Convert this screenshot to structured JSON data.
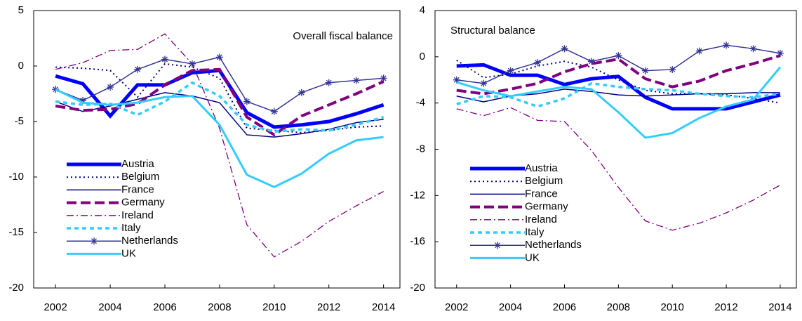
{
  "chart_data": [
    {
      "type": "line",
      "title": "Overall fiscal balance",
      "x": [
        2002,
        2003,
        2004,
        2005,
        2006,
        2007,
        2008,
        2009,
        2010,
        2011,
        2012,
        2013,
        2014
      ],
      "xlim": [
        2001.2,
        2014.6
      ],
      "xticks": [
        2002,
        2004,
        2006,
        2008,
        2010,
        2012,
        2014
      ],
      "ylim": [
        -20,
        5
      ],
      "yticks": [
        5,
        0,
        -5,
        -10,
        -15,
        -20
      ],
      "legend": "lower left",
      "series": [
        {
          "name": "Austria",
          "color": "#0000ff",
          "values": [
            -0.9,
            -1.6,
            -4.5,
            -1.7,
            -1.7,
            -0.6,
            -0.4,
            -4.2,
            -5.5,
            -5.3,
            -5.0,
            -4.3,
            -3.5
          ]
        },
        {
          "name": "Belgium",
          "color": "#000080",
          "values": [
            -0.1,
            -0.2,
            -0.4,
            -2.8,
            0.2,
            -0.1,
            -1.1,
            -5.6,
            -5.8,
            -6.0,
            -5.8,
            -5.5,
            -5.4
          ]
        },
        {
          "name": "France",
          "color": "#000080",
          "values": [
            -3.2,
            -4.1,
            -3.6,
            -3.0,
            -2.4,
            -2.7,
            -3.3,
            -6.2,
            -6.4,
            -6.1,
            -5.7,
            -5.1,
            -4.8
          ]
        },
        {
          "name": "Germany",
          "color": "#800080",
          "values": [
            -3.6,
            -4.0,
            -3.9,
            -3.4,
            -1.7,
            -0.4,
            -0.3,
            -4.6,
            -6.2,
            -4.5,
            -3.5,
            -2.5,
            -1.4
          ]
        },
        {
          "name": "Ireland",
          "color": "#800080",
          "values": [
            -0.3,
            0.3,
            1.4,
            1.5,
            2.9,
            0.2,
            -5.6,
            -14.3,
            -17.2,
            -15.8,
            -14.0,
            -12.6,
            -11.3
          ]
        },
        {
          "name": "Italy",
          "color": "#33ccff",
          "values": [
            -3.2,
            -3.5,
            -3.4,
            -4.4,
            -3.2,
            -1.5,
            -2.7,
            -5.3,
            -5.9,
            -5.7,
            -5.8,
            -5.3,
            -4.6
          ]
        },
        {
          "name": "Netherlands",
          "color": "#333399",
          "marker": "star",
          "values": [
            -2.1,
            -3.1,
            -1.9,
            -0.3,
            0.6,
            0.2,
            0.8,
            -3.2,
            -4.1,
            -2.4,
            -1.5,
            -1.3,
            -1.1
          ]
        },
        {
          "name": "UK",
          "color": "#33ccff",
          "values": [
            -2.1,
            -3.3,
            -3.5,
            -3.3,
            -2.8,
            -2.7,
            -5.3,
            -9.8,
            -10.9,
            -9.7,
            -7.9,
            -6.7,
            -6.4
          ]
        }
      ]
    },
    {
      "type": "line",
      "title": "Structural balance",
      "x": [
        2002,
        2003,
        2004,
        2005,
        2006,
        2007,
        2008,
        2009,
        2010,
        2011,
        2012,
        2013,
        2014
      ],
      "xlim": [
        2001.2,
        2014.6
      ],
      "xticks": [
        2002,
        2004,
        2006,
        2008,
        2010,
        2012,
        2014
      ],
      "ylim": [
        -20,
        4
      ],
      "yticks": [
        4,
        0,
        -4,
        -8,
        -12,
        -16,
        -20
      ],
      "legend": "lower left",
      "series": [
        {
          "name": "Austria",
          "color": "#0000ff",
          "values": [
            -0.8,
            -0.7,
            -1.6,
            -1.6,
            -2.4,
            -1.9,
            -1.7,
            -3.5,
            -4.5,
            -4.5,
            -4.5,
            -3.9,
            -3.3
          ]
        },
        {
          "name": "Belgium",
          "color": "#000080",
          "values": [
            -0.3,
            -1.8,
            -1.5,
            -0.8,
            -0.4,
            -0.9,
            -2.0,
            -2.9,
            -3.2,
            -3.2,
            -3.3,
            -3.6,
            -4.0
          ]
        },
        {
          "name": "France",
          "color": "#000080",
          "values": [
            -3.4,
            -3.9,
            -3.4,
            -3.2,
            -2.8,
            -3.0,
            -3.3,
            -3.4,
            -3.3,
            -3.2,
            -3.2,
            -3.1,
            -3.1
          ]
        },
        {
          "name": "Germany",
          "color": "#800080",
          "values": [
            -2.9,
            -3.2,
            -2.8,
            -2.3,
            -1.3,
            -0.6,
            -0.2,
            -1.9,
            -2.6,
            -2.1,
            -1.2,
            -0.6,
            0.1
          ]
        },
        {
          "name": "Ireland",
          "color": "#800080",
          "values": [
            -4.5,
            -5.1,
            -4.4,
            -5.5,
            -5.6,
            -8.1,
            -11.3,
            -14.2,
            -15.0,
            -14.4,
            -13.5,
            -12.4,
            -11.1
          ]
        },
        {
          "name": "Italy",
          "color": "#33ccff",
          "values": [
            -4.1,
            -3.4,
            -3.5,
            -4.3,
            -3.6,
            -2.3,
            -2.6,
            -2.8,
            -2.9,
            -3.2,
            -3.4,
            -3.5,
            -3.2
          ]
        },
        {
          "name": "Netherlands",
          "color": "#333399",
          "marker": "star",
          "values": [
            -2.0,
            -2.3,
            -1.2,
            -0.5,
            0.7,
            -0.4,
            0.1,
            -1.2,
            -1.1,
            0.5,
            1.0,
            0.7,
            0.3
          ]
        },
        {
          "name": "UK",
          "color": "#33ccff",
          "values": [
            -2.2,
            -2.9,
            -3.4,
            -3.0,
            -2.6,
            -2.8,
            -4.8,
            -7.0,
            -6.6,
            -5.3,
            -4.3,
            -3.7,
            -0.9
          ]
        }
      ]
    }
  ]
}
